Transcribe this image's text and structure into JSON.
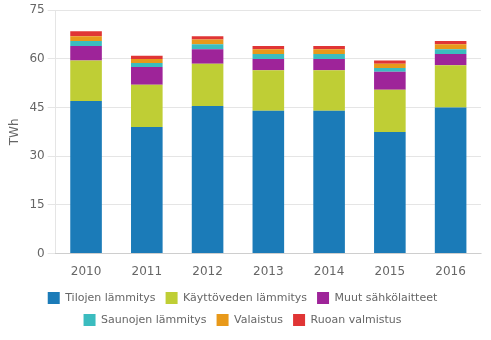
{
  "chart_data": {
    "type": "bar",
    "stacked": true,
    "categories": [
      "2010",
      "2011",
      "2012",
      "2013",
      "2014",
      "2015",
      "2016"
    ],
    "series": [
      {
        "name": "Tilojen lämmitys",
        "color": "#1B7BB8",
        "values": [
          47.0,
          39.0,
          45.5,
          44.0,
          44.0,
          37.5,
          45.0
        ]
      },
      {
        "name": "Käyttöveden lämmitys",
        "color": "#BFCE35",
        "values": [
          12.5,
          13.0,
          13.0,
          12.5,
          12.5,
          13.0,
          13.0
        ]
      },
      {
        "name": "Muut sähkölaitteet",
        "color": "#9E2499",
        "values": [
          4.5,
          5.5,
          4.5,
          3.5,
          3.5,
          5.5,
          3.5
        ]
      },
      {
        "name": "Saunojen lämmitys",
        "color": "#3BBCBF",
        "values": [
          1.5,
          1.2,
          1.5,
          1.5,
          1.5,
          1.2,
          1.5
        ]
      },
      {
        "name": "Valaistus",
        "color": "#E8991A",
        "values": [
          1.5,
          1.3,
          1.5,
          1.5,
          1.5,
          1.3,
          1.5
        ]
      },
      {
        "name": "Ruoan valmistus",
        "color": "#E03535",
        "values": [
          1.5,
          1.0,
          1.0,
          1.0,
          1.0,
          1.0,
          1.0
        ]
      }
    ],
    "ylabel": "TWh",
    "ylim": [
      0,
      75
    ],
    "yticks": [
      0,
      15,
      30,
      45,
      60,
      75
    ],
    "grid": true,
    "legend": "bottom"
  }
}
